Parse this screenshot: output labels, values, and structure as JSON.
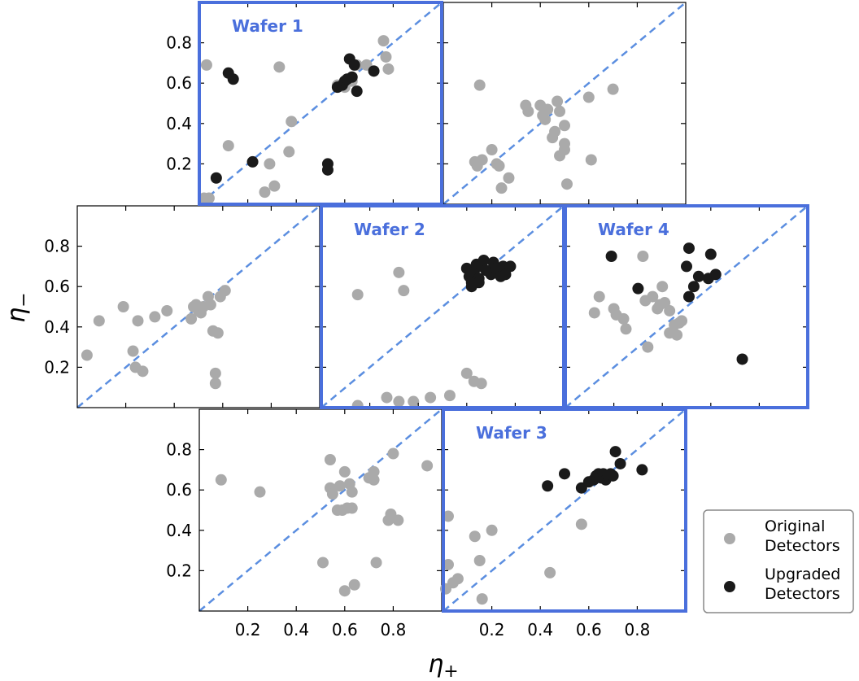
{
  "chart_data": {
    "type": "scatter",
    "xlabel_symbol": "η",
    "xlabel_sub": "+",
    "ylabel_symbol": "η",
    "ylabel_sub": "−",
    "xlim": [
      0,
      1
    ],
    "ylim": [
      0,
      1
    ],
    "ticks": [
      0.2,
      0.4,
      0.6,
      0.8
    ],
    "tick_labels": [
      "0.2",
      "0.4",
      "0.6",
      "0.8"
    ],
    "diagonal": "y = x (dashed)",
    "colors": {
      "original": "#aaaaaa",
      "upgraded": "#1a1a1a",
      "highlight": "#4a6fdc",
      "diagonal": "#5b8ee0",
      "axis": "#000000"
    },
    "legend": {
      "position": "lower-right",
      "original": [
        "Original",
        "Detectors"
      ],
      "upgraded": [
        "Upgraded",
        "Detectors"
      ]
    },
    "panels": [
      {
        "id": "r1c1",
        "title": "Wafer 1",
        "highlight": true,
        "original": [
          [
            0.03,
            0.69
          ],
          [
            0.33,
            0.68
          ],
          [
            0.38,
            0.41
          ],
          [
            0.37,
            0.26
          ],
          [
            0.29,
            0.2
          ],
          [
            0.31,
            0.09
          ],
          [
            0.27,
            0.06
          ],
          [
            0.12,
            0.29
          ],
          [
            0.02,
            0.03
          ],
          [
            0.04,
            0.03
          ],
          [
            0.57,
            0.59
          ],
          [
            0.6,
            0.58
          ],
          [
            0.63,
            0.61
          ],
          [
            0.65,
            0.69
          ],
          [
            0.69,
            0.69
          ],
          [
            0.76,
            0.81
          ],
          [
            0.77,
            0.73
          ],
          [
            0.78,
            0.67
          ]
        ],
        "upgraded": [
          [
            0.12,
            0.65
          ],
          [
            0.14,
            0.62
          ],
          [
            0.07,
            0.13
          ],
          [
            0.22,
            0.21
          ],
          [
            0.53,
            0.2
          ],
          [
            0.53,
            0.17
          ],
          [
            0.57,
            0.58
          ],
          [
            0.59,
            0.59
          ],
          [
            0.6,
            0.61
          ],
          [
            0.61,
            0.62
          ],
          [
            0.62,
            0.72
          ],
          [
            0.63,
            0.63
          ],
          [
            0.64,
            0.69
          ],
          [
            0.65,
            0.56
          ],
          [
            0.72,
            0.66
          ]
        ]
      },
      {
        "id": "r1c2",
        "title": "",
        "highlight": false,
        "original": [
          [
            0.15,
            0.59
          ],
          [
            0.34,
            0.49
          ],
          [
            0.35,
            0.46
          ],
          [
            0.4,
            0.49
          ],
          [
            0.41,
            0.44
          ],
          [
            0.42,
            0.42
          ],
          [
            0.43,
            0.47
          ],
          [
            0.45,
            0.33
          ],
          [
            0.46,
            0.36
          ],
          [
            0.47,
            0.51
          ],
          [
            0.48,
            0.46
          ],
          [
            0.48,
            0.24
          ],
          [
            0.5,
            0.39
          ],
          [
            0.5,
            0.27
          ],
          [
            0.5,
            0.3
          ],
          [
            0.51,
            0.1
          ],
          [
            0.6,
            0.53
          ],
          [
            0.61,
            0.22
          ],
          [
            0.7,
            0.57
          ],
          [
            0.13,
            0.21
          ],
          [
            0.14,
            0.19
          ],
          [
            0.16,
            0.22
          ],
          [
            0.2,
            0.27
          ],
          [
            0.22,
            0.2
          ],
          [
            0.23,
            0.19
          ],
          [
            0.24,
            0.08
          ],
          [
            0.27,
            0.13
          ]
        ]
      },
      {
        "id": "r2c1",
        "title": "",
        "highlight": false,
        "original": [
          [
            0.04,
            0.26
          ],
          [
            0.09,
            0.43
          ],
          [
            0.19,
            0.5
          ],
          [
            0.23,
            0.28
          ],
          [
            0.24,
            0.2
          ],
          [
            0.25,
            0.43
          ],
          [
            0.27,
            0.18
          ],
          [
            0.32,
            0.45
          ],
          [
            0.37,
            0.48
          ],
          [
            0.47,
            0.44
          ],
          [
            0.48,
            0.5
          ],
          [
            0.49,
            0.51
          ],
          [
            0.5,
            0.48
          ],
          [
            0.51,
            0.47
          ],
          [
            0.52,
            0.5
          ],
          [
            0.54,
            0.55
          ],
          [
            0.55,
            0.51
          ],
          [
            0.56,
            0.38
          ],
          [
            0.58,
            0.37
          ],
          [
            0.57,
            0.17
          ],
          [
            0.57,
            0.12
          ],
          [
            0.59,
            0.55
          ],
          [
            0.61,
            0.58
          ]
        ]
      },
      {
        "id": "r2c2",
        "title": "Wafer 2",
        "highlight": true,
        "original": [
          [
            0.15,
            0.56
          ],
          [
            0.32,
            0.67
          ],
          [
            0.34,
            0.58
          ],
          [
            0.15,
            0.01
          ],
          [
            0.27,
            0.05
          ],
          [
            0.32,
            0.03
          ],
          [
            0.38,
            0.03
          ],
          [
            0.45,
            0.05
          ],
          [
            0.53,
            0.06
          ],
          [
            0.6,
            0.17
          ],
          [
            0.63,
            0.13
          ],
          [
            0.66,
            0.12
          ]
        ],
        "upgraded": [
          [
            0.6,
            0.69
          ],
          [
            0.61,
            0.65
          ],
          [
            0.62,
            0.62
          ],
          [
            0.62,
            0.6
          ],
          [
            0.63,
            0.67
          ],
          [
            0.64,
            0.71
          ],
          [
            0.65,
            0.64
          ],
          [
            0.65,
            0.62
          ],
          [
            0.66,
            0.7
          ],
          [
            0.67,
            0.73
          ],
          [
            0.68,
            0.68
          ],
          [
            0.7,
            0.66
          ],
          [
            0.71,
            0.72
          ],
          [
            0.72,
            0.69
          ],
          [
            0.74,
            0.65
          ],
          [
            0.75,
            0.7
          ],
          [
            0.76,
            0.66
          ],
          [
            0.78,
            0.7
          ]
        ]
      },
      {
        "id": "r2c3",
        "title": "Wafer 4",
        "highlight": true,
        "original": [
          [
            0.12,
            0.47
          ],
          [
            0.14,
            0.55
          ],
          [
            0.2,
            0.49
          ],
          [
            0.21,
            0.46
          ],
          [
            0.24,
            0.44
          ],
          [
            0.25,
            0.39
          ],
          [
            0.32,
            0.75
          ],
          [
            0.33,
            0.53
          ],
          [
            0.34,
            0.3
          ],
          [
            0.36,
            0.55
          ],
          [
            0.38,
            0.49
          ],
          [
            0.39,
            0.51
          ],
          [
            0.4,
            0.6
          ],
          [
            0.41,
            0.52
          ],
          [
            0.43,
            0.48
          ],
          [
            0.43,
            0.37
          ],
          [
            0.45,
            0.41
          ],
          [
            0.46,
            0.36
          ],
          [
            0.47,
            0.42
          ],
          [
            0.48,
            0.43
          ]
        ],
        "upgraded": [
          [
            0.19,
            0.75
          ],
          [
            0.3,
            0.59
          ],
          [
            0.5,
            0.7
          ],
          [
            0.51,
            0.79
          ],
          [
            0.51,
            0.55
          ],
          [
            0.53,
            0.6
          ],
          [
            0.55,
            0.65
          ],
          [
            0.59,
            0.64
          ],
          [
            0.6,
            0.76
          ],
          [
            0.62,
            0.66
          ],
          [
            0.73,
            0.24
          ]
        ]
      },
      {
        "id": "r3c1",
        "title": "",
        "highlight": false,
        "original": [
          [
            0.09,
            0.65
          ],
          [
            0.25,
            0.59
          ],
          [
            0.51,
            0.24
          ],
          [
            0.54,
            0.61
          ],
          [
            0.54,
            0.75
          ],
          [
            0.55,
            0.58
          ],
          [
            0.57,
            0.5
          ],
          [
            0.58,
            0.62
          ],
          [
            0.59,
            0.5
          ],
          [
            0.6,
            0.69
          ],
          [
            0.6,
            0.1
          ],
          [
            0.61,
            0.51
          ],
          [
            0.62,
            0.63
          ],
          [
            0.63,
            0.59
          ],
          [
            0.63,
            0.51
          ],
          [
            0.64,
            0.13
          ],
          [
            0.7,
            0.66
          ],
          [
            0.72,
            0.69
          ],
          [
            0.72,
            0.65
          ],
          [
            0.73,
            0.24
          ],
          [
            0.78,
            0.45
          ],
          [
            0.79,
            0.48
          ],
          [
            0.8,
            0.78
          ],
          [
            0.82,
            0.45
          ],
          [
            0.94,
            0.72
          ]
        ]
      },
      {
        "id": "r3c2",
        "title": "Wafer 3",
        "highlight": true,
        "original": [
          [
            0.02,
            0.47
          ],
          [
            0.02,
            0.23
          ],
          [
            0.01,
            0.11
          ],
          [
            0.04,
            0.14
          ],
          [
            0.06,
            0.16
          ],
          [
            0.13,
            0.37
          ],
          [
            0.15,
            0.25
          ],
          [
            0.16,
            0.06
          ],
          [
            0.2,
            0.4
          ],
          [
            0.44,
            0.19
          ],
          [
            0.57,
            0.43
          ]
        ],
        "upgraded": [
          [
            0.43,
            0.62
          ],
          [
            0.5,
            0.68
          ],
          [
            0.57,
            0.61
          ],
          [
            0.6,
            0.64
          ],
          [
            0.62,
            0.65
          ],
          [
            0.63,
            0.67
          ],
          [
            0.64,
            0.68
          ],
          [
            0.65,
            0.66
          ],
          [
            0.66,
            0.68
          ],
          [
            0.67,
            0.65
          ],
          [
            0.68,
            0.67
          ],
          [
            0.69,
            0.68
          ],
          [
            0.7,
            0.67
          ],
          [
            0.71,
            0.79
          ],
          [
            0.73,
            0.73
          ],
          [
            0.82,
            0.7
          ]
        ]
      }
    ]
  }
}
